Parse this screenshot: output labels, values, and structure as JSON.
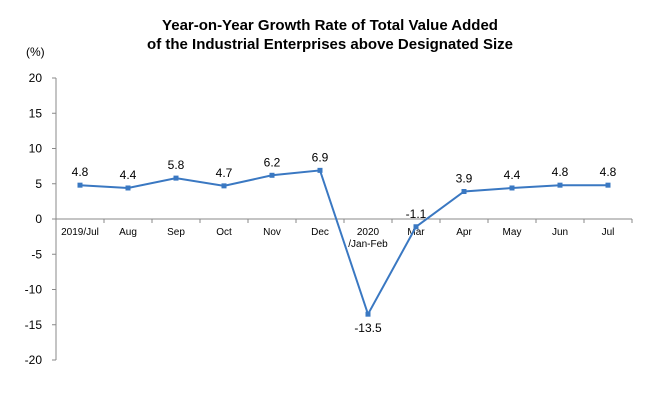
{
  "chart_data": {
    "type": "line",
    "title_line1": "Year-on-Year Growth Rate of Total Value Added",
    "title_line2": "of the Industrial Enterprises above Designated Size",
    "ylabel": "(%)",
    "xlabel": "",
    "ylim": [
      -20,
      20
    ],
    "yticks": [
      20,
      15,
      10,
      5,
      0,
      -5,
      -10,
      -15,
      -20
    ],
    "categories": [
      "2019/Jul",
      "Aug",
      "Sep",
      "Oct",
      "Nov",
      "Dec",
      "2020 /Jan-Feb",
      "Mar",
      "Apr",
      "May",
      "Jun",
      "Jul"
    ],
    "category_lines": [
      [
        "2019/Jul"
      ],
      [
        "Aug"
      ],
      [
        "Sep"
      ],
      [
        "Oct"
      ],
      [
        "Nov"
      ],
      [
        "Dec"
      ],
      [
        "2020",
        "/Jan-Feb"
      ],
      [
        "Mar"
      ],
      [
        "Apr"
      ],
      [
        "May"
      ],
      [
        "Jun"
      ],
      [
        "Jul"
      ]
    ],
    "series": [
      {
        "values": [
          4.8,
          4.4,
          5.8,
          4.7,
          6.2,
          6.9,
          -13.5,
          -1.1,
          3.9,
          4.4,
          4.8,
          4.8
        ]
      }
    ],
    "data_labels": [
      "4.8",
      "4.4",
      "5.8",
      "4.7",
      "6.2",
      "6.9",
      "-13.5",
      "-1.1",
      "3.9",
      "4.4",
      "4.8",
      "4.8"
    ],
    "grid": false,
    "legend": "none",
    "colors": {
      "line": "#3a78c2",
      "axis": "#888888"
    }
  }
}
